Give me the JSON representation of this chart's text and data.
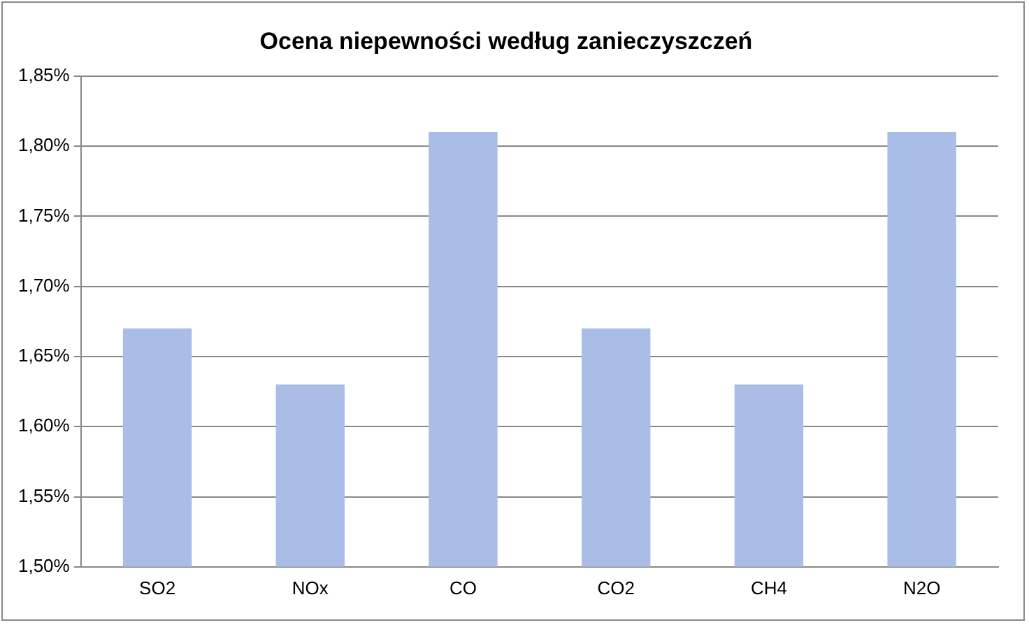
{
  "chart_data": {
    "type": "bar",
    "title": "Ocena niepewności według zanieczyszczeń",
    "categories": [
      "SO2",
      "NOx",
      "CO",
      "CO2",
      "CH4",
      "N2O"
    ],
    "values": [
      1.67,
      1.63,
      1.81,
      1.67,
      1.63,
      1.81
    ],
    "color": "#a9bde6",
    "ylim": [
      1.5,
      1.85
    ],
    "yticks": [
      {
        "value": 1.5,
        "label": "1,50%"
      },
      {
        "value": 1.55,
        "label": "1,55%"
      },
      {
        "value": 1.6,
        "label": "1,60%"
      },
      {
        "value": 1.65,
        "label": "1,65%"
      },
      {
        "value": 1.7,
        "label": "1,70%"
      },
      {
        "value": 1.75,
        "label": "1,75%"
      },
      {
        "value": 1.8,
        "label": "1,80%"
      },
      {
        "value": 1.85,
        "label": "1,85%"
      }
    ],
    "grid": "y",
    "legend": false
  }
}
